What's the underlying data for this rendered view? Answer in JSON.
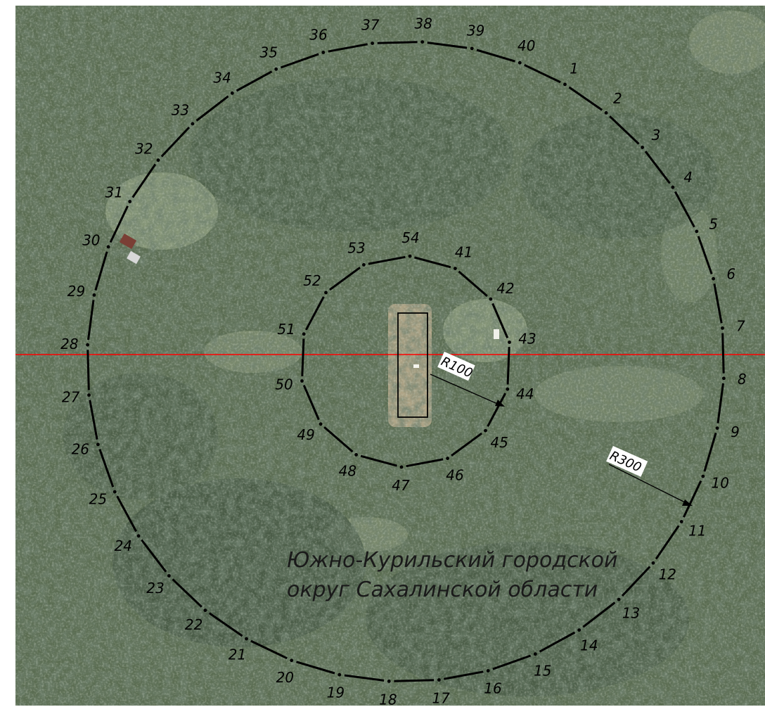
{
  "map": {
    "colors": {
      "forest_dark": "#3f5140",
      "forest_mid": "#5b6d52",
      "clearing": "#8b9a7c",
      "sand": "#b9ab8d",
      "boundary": "#000000",
      "axis_line": "#ff0000",
      "frame": "#ffffff"
    },
    "region_label": {
      "line1": "Южно-Курильский городской",
      "line2": "округ Сахалинской области"
    },
    "outer_ring": {
      "radius_label": "R300",
      "points": [
        "1",
        "2",
        "3",
        "4",
        "5",
        "6",
        "7",
        "8",
        "9",
        "10",
        "11",
        "12",
        "13",
        "14",
        "15",
        "16",
        "17",
        "18",
        "19",
        "20",
        "21",
        "22",
        "23",
        "24",
        "25",
        "26",
        "27",
        "28",
        "29",
        "30",
        "31",
        "32",
        "33",
        "34",
        "35",
        "36",
        "37",
        "38",
        "39",
        "40"
      ]
    },
    "inner_ring": {
      "radius_label": "R100",
      "points": [
        "41",
        "42",
        "43",
        "44",
        "45",
        "46",
        "47",
        "48",
        "49",
        "50",
        "51",
        "52",
        "53",
        "54"
      ]
    }
  }
}
